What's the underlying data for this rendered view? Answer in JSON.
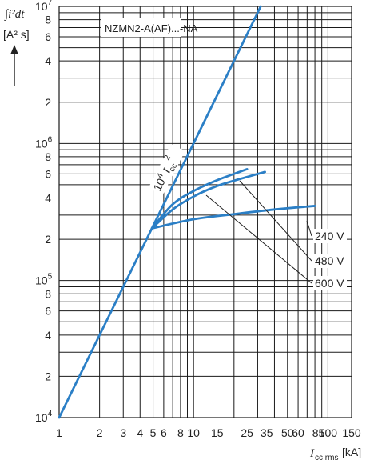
{
  "chart_data": {
    "type": "line",
    "title": "NZMN2-A(AF)...-NA",
    "ylabel_top": "∫i²dt",
    "ylabel_unit": "[A² s]",
    "xlabel_sym": "I",
    "xlabel_sub": "cc rms",
    "xlabel_unit": "[kA]",
    "x_scale": "log",
    "y_scale": "log",
    "xlim": [
      1,
      150
    ],
    "ylim": [
      10000,
      10000000
    ],
    "grid": true,
    "x_tick_labels": [
      {
        "value": 1,
        "label": "1"
      },
      {
        "value": 2,
        "label": "2"
      },
      {
        "value": 3,
        "label": "3"
      },
      {
        "value": 4,
        "label": "4"
      },
      {
        "value": 5,
        "label": "5"
      },
      {
        "value": 6,
        "label": "6"
      },
      {
        "value": 8,
        "label": "8"
      },
      {
        "value": 10,
        "label": "10"
      },
      {
        "value": 15,
        "label": "15"
      },
      {
        "value": 25,
        "label": "25"
      },
      {
        "value": 35,
        "label": "35"
      },
      {
        "value": 50,
        "label": "50"
      },
      {
        "value": 60,
        "label": "60"
      },
      {
        "value": 85,
        "label": "85"
      },
      {
        "value": 100,
        "label": "100"
      },
      {
        "value": 150,
        "label": "150"
      }
    ],
    "y_decade_labels": [
      {
        "value": 10000,
        "base": "10",
        "exp": "4"
      },
      {
        "value": 100000,
        "base": "10",
        "exp": "5"
      },
      {
        "value": 1000000,
        "base": "10",
        "exp": "6"
      },
      {
        "value": 10000000,
        "base": "10",
        "exp": "7"
      }
    ],
    "y_minor_labels": [
      {
        "value": 20000,
        "label": "2"
      },
      {
        "value": 40000,
        "label": "4"
      },
      {
        "value": 60000,
        "label": "6"
      },
      {
        "value": 80000,
        "label": "8"
      },
      {
        "value": 200000,
        "label": "2"
      },
      {
        "value": 400000,
        "label": "4"
      },
      {
        "value": 600000,
        "label": "6"
      },
      {
        "value": 800000,
        "label": "8"
      },
      {
        "value": 2000000,
        "label": "2"
      },
      {
        "value": 4000000,
        "label": "4"
      },
      {
        "value": 6000000,
        "label": "6"
      },
      {
        "value": 8000000,
        "label": "8"
      }
    ],
    "reference_line": {
      "label_coef": "10",
      "label_coef_exp": "4",
      "label_sym": "I",
      "label_sub": "cc",
      "label_exp": "2",
      "points": [
        [
          1,
          10000
        ],
        [
          31.6,
          10000000
        ]
      ]
    },
    "series": [
      {
        "name": "240 V",
        "values": [
          [
            4.9,
            240000
          ],
          [
            10,
            280000
          ],
          [
            20,
            305000
          ],
          [
            40,
            330000
          ],
          [
            80,
            350000
          ]
        ]
      },
      {
        "name": "480 V",
        "values": [
          [
            4.9,
            240000
          ],
          [
            7,
            330000
          ],
          [
            10,
            410000
          ],
          [
            15,
            490000
          ],
          [
            25,
            570000
          ],
          [
            34,
            620000
          ]
        ]
      },
      {
        "name": "600 V",
        "values": [
          [
            4.9,
            240000
          ],
          [
            7,
            360000
          ],
          [
            10,
            450000
          ],
          [
            15,
            540000
          ],
          [
            20,
            600000
          ],
          [
            25,
            650000
          ]
        ]
      }
    ],
    "series_color": "#2b7fc6",
    "grid_color": "#1a1a1a"
  }
}
